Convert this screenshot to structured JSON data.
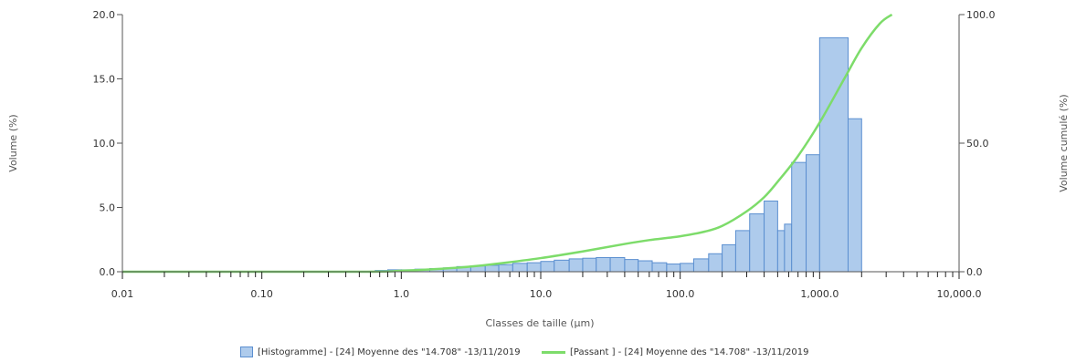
{
  "chart_data": {
    "type": "bar",
    "xlabel": "Classes de taille  (µm)",
    "ylabel_left": "Volume  (%)",
    "ylabel_right": "Volume cumulé (%)",
    "x_scale": "log",
    "xlim": [
      0.01,
      10000
    ],
    "ylim_left": [
      0,
      20
    ],
    "ylim_right": [
      0,
      100
    ],
    "x_ticks": [
      {
        "value": 0.01,
        "label": "0.01"
      },
      {
        "value": 0.1,
        "label": "0.10"
      },
      {
        "value": 1,
        "label": "1.0"
      },
      {
        "value": 10,
        "label": "10.0"
      },
      {
        "value": 100,
        "label": "100.0"
      },
      {
        "value": 1000,
        "label": "1,000.0"
      },
      {
        "value": 10000,
        "label": "10,000.0"
      }
    ],
    "y_ticks_left": [
      {
        "value": 0,
        "label": "0.0"
      },
      {
        "value": 5,
        "label": "5.0"
      },
      {
        "value": 10,
        "label": "10.0"
      },
      {
        "value": 15,
        "label": "15.0"
      },
      {
        "value": 20,
        "label": "20.0"
      }
    ],
    "y_ticks_right": [
      {
        "value": 0,
        "label": "0.0"
      },
      {
        "value": 50,
        "label": "50.0"
      },
      {
        "value": 100,
        "label": "100.0"
      }
    ],
    "grid": false,
    "legend_position": "bottom",
    "series": [
      {
        "name": "[Histogramme] - [24] Moyenne des \"14.708\" -13/11/2019",
        "type": "bar",
        "axis": "left",
        "color": "#aecbec",
        "edge_color": "#5b8fd0",
        "bins": [
          {
            "x0": 0.65,
            "x1": 0.8,
            "value": 0.1
          },
          {
            "x0": 0.8,
            "x1": 1.0,
            "value": 0.15
          },
          {
            "x0": 1.0,
            "x1": 1.25,
            "value": 0.15
          },
          {
            "x0": 1.25,
            "x1": 1.6,
            "value": 0.2
          },
          {
            "x0": 1.6,
            "x1": 2.0,
            "value": 0.25
          },
          {
            "x0": 2.0,
            "x1": 2.5,
            "value": 0.3
          },
          {
            "x0": 2.5,
            "x1": 3.15,
            "value": 0.4
          },
          {
            "x0": 3.15,
            "x1": 4.0,
            "value": 0.45
          },
          {
            "x0": 4.0,
            "x1": 5.0,
            "value": 0.5
          },
          {
            "x0": 5.0,
            "x1": 6.3,
            "value": 0.55
          },
          {
            "x0": 6.3,
            "x1": 8.0,
            "value": 0.65
          },
          {
            "x0": 8.0,
            "x1": 10.0,
            "value": 0.7
          },
          {
            "x0": 10.0,
            "x1": 12.5,
            "value": 0.8
          },
          {
            "x0": 12.5,
            "x1": 16.0,
            "value": 0.9
          },
          {
            "x0": 16.0,
            "x1": 20.0,
            "value": 1.0
          },
          {
            "x0": 20.0,
            "x1": 25.0,
            "value": 1.05
          },
          {
            "x0": 25.0,
            "x1": 31.5,
            "value": 1.1
          },
          {
            "x0": 31.5,
            "x1": 40.0,
            "value": 1.1
          },
          {
            "x0": 40.0,
            "x1": 50.0,
            "value": 0.95
          },
          {
            "x0": 50.0,
            "x1": 63.0,
            "value": 0.85
          },
          {
            "x0": 63.0,
            "x1": 80.0,
            "value": 0.7
          },
          {
            "x0": 80.0,
            "x1": 100.0,
            "value": 0.6
          },
          {
            "x0": 100.0,
            "x1": 125.0,
            "value": 0.65
          },
          {
            "x0": 125.0,
            "x1": 160.0,
            "value": 1.0
          },
          {
            "x0": 160.0,
            "x1": 200.0,
            "value": 1.4
          },
          {
            "x0": 200.0,
            "x1": 250.0,
            "value": 2.1
          },
          {
            "x0": 250.0,
            "x1": 315.0,
            "value": 3.2
          },
          {
            "x0": 315.0,
            "x1": 400.0,
            "value": 4.5
          },
          {
            "x0": 400.0,
            "x1": 500.0,
            "value": 5.5
          },
          {
            "x0": 500.0,
            "x1": 560.0,
            "value": 3.2
          },
          {
            "x0": 560.0,
            "x1": 630.0,
            "value": 3.7
          },
          {
            "x0": 630.0,
            "x1": 800.0,
            "value": 8.5
          },
          {
            "x0": 800.0,
            "x1": 1000.0,
            "value": 9.1
          },
          {
            "x0": 1000.0,
            "x1": 1600.0,
            "value": 18.2
          },
          {
            "x0": 1600.0,
            "x1": 2000.0,
            "value": 11.9
          }
        ]
      },
      {
        "name": "[Passant ] - [24] Moyenne des \"14.708\" -13/11/2019",
        "type": "line",
        "axis": "right",
        "color": "#7ddc6a",
        "points": [
          [
            0.01,
            0
          ],
          [
            0.5,
            0
          ],
          [
            1.0,
            0.4
          ],
          [
            2.0,
            1.2
          ],
          [
            3.0,
            1.9
          ],
          [
            5.0,
            3.2
          ],
          [
            10.0,
            5.3
          ],
          [
            20.0,
            7.9
          ],
          [
            40.0,
            10.8
          ],
          [
            60.0,
            12.3
          ],
          [
            100.0,
            13.8
          ],
          [
            150.0,
            15.6
          ],
          [
            200.0,
            17.8
          ],
          [
            300.0,
            23.5
          ],
          [
            400.0,
            29.0
          ],
          [
            500.0,
            35.0
          ],
          [
            700.0,
            45.0
          ],
          [
            1000.0,
            58.0
          ],
          [
            1500.0,
            75.0
          ],
          [
            2000.0,
            87.0
          ],
          [
            2700.0,
            96.5
          ],
          [
            3300.0,
            100
          ]
        ]
      }
    ]
  },
  "legend": {
    "hist_label": "[Histogramme] - [24] Moyenne des \"14.708\" -13/11/2019",
    "line_label": "[Passant ] - [24] Moyenne des \"14.708\" -13/11/2019"
  }
}
